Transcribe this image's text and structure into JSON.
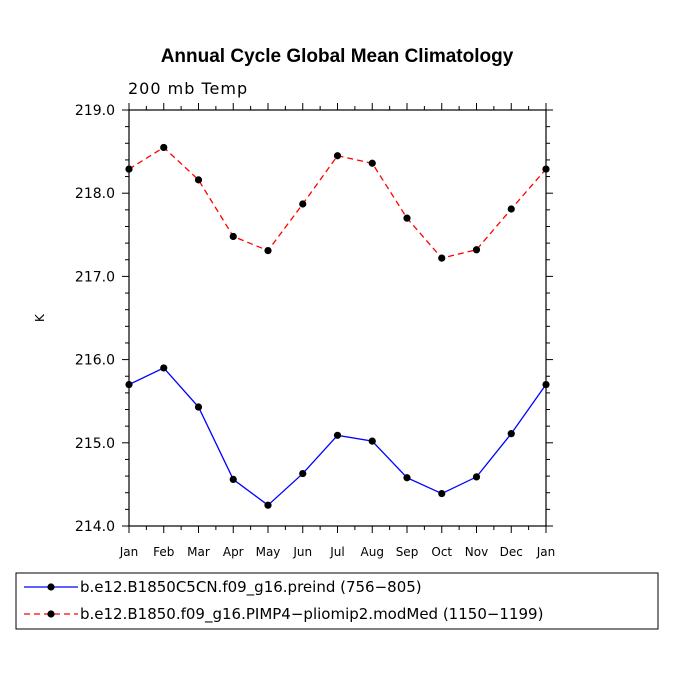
{
  "chart_data": {
    "type": "line",
    "title": "Annual Cycle Global Mean Climatology",
    "subtitle": "200 mb Temp",
    "xlabel": "",
    "ylabel": "K",
    "categories": [
      "Jan",
      "Feb",
      "Mar",
      "Apr",
      "May",
      "Jun",
      "Jul",
      "Aug",
      "Sep",
      "Oct",
      "Nov",
      "Dec",
      "Jan"
    ],
    "ylim": [
      214.0,
      219.0
    ],
    "yticks": [
      "214.0",
      "215.0",
      "216.0",
      "217.0",
      "218.0",
      "219.0"
    ],
    "series": [
      {
        "name": "b.e12.B1850C5CN.f09_g16.preind (756−805)",
        "color": "#0000ff",
        "dash": "solid",
        "values": [
          215.7,
          215.9,
          215.43,
          214.56,
          214.25,
          214.63,
          215.09,
          215.02,
          214.58,
          214.39,
          214.59,
          215.11,
          215.7
        ]
      },
      {
        "name": "b.e12.B1850.f09_g16.PIMP4−pliomip2.modMed (1150−1199)",
        "color": "#ff0000",
        "dash": "dashed",
        "values": [
          218.29,
          218.55,
          218.16,
          217.48,
          217.31,
          217.87,
          218.45,
          218.36,
          217.7,
          217.22,
          217.32,
          217.81,
          218.29
        ]
      }
    ],
    "legend_position": "bottom"
  }
}
